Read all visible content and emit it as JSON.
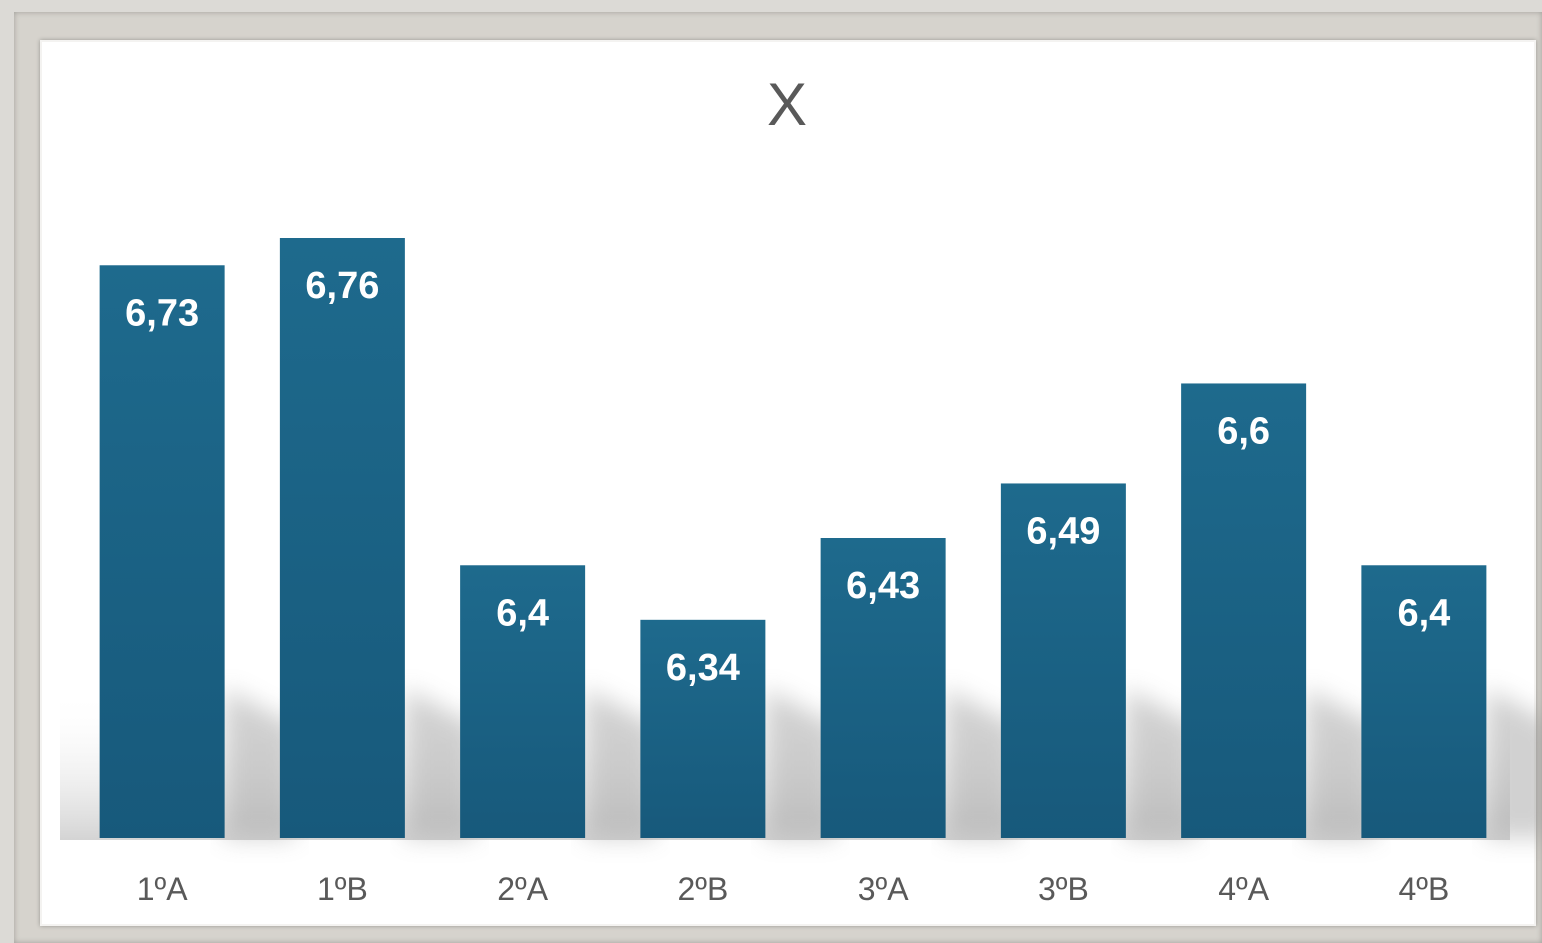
{
  "chart_data": {
    "type": "bar",
    "title": "X",
    "xlabel": "",
    "ylabel": "",
    "categories": [
      "1ºA",
      "1ºB",
      "2ºA",
      "2ºB",
      "3ºA",
      "3ºB",
      "4ºA",
      "4ºB"
    ],
    "values": [
      6.73,
      6.76,
      6.4,
      6.34,
      6.43,
      6.49,
      6.6,
      6.4
    ],
    "data_labels": [
      "6,73",
      "6,76",
      "6,4",
      "6,34",
      "6,43",
      "6,49",
      "6,6",
      "6,4"
    ],
    "ylim": [
      6.1,
      6.76
    ],
    "grid": false,
    "legend": "none",
    "bar_color": "#17597b",
    "bar_color_light": "#1e6a8d"
  }
}
